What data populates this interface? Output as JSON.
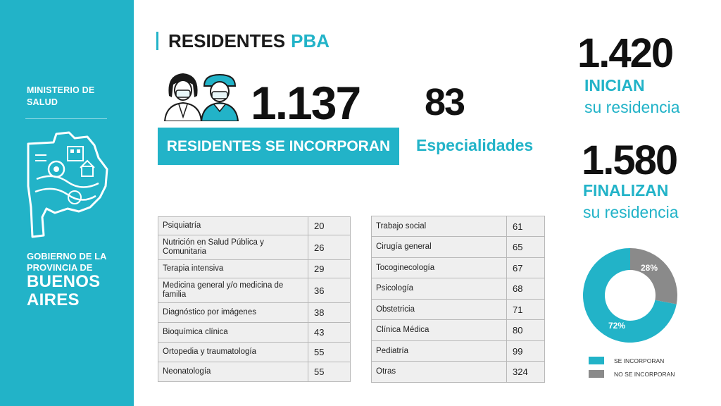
{
  "sidebar": {
    "ministry_line1": "MINISTERIO DE",
    "ministry_line2": "SALUD",
    "gov_line1": "GOBIERNO DE LA",
    "gov_line2": "PROVINCIA DE",
    "gov_line3": "BUENOS",
    "gov_line4": "AIRES"
  },
  "header": {
    "title_main": "RESIDENTES",
    "title_accent": "PBA"
  },
  "residents": {
    "count": "1.137",
    "label": "RESIDENTES SE INCORPORAN"
  },
  "specialties": {
    "count": "83",
    "label": "Especialidades"
  },
  "start": {
    "count": "1.420",
    "label": "INICIAN",
    "sub": "su residencia"
  },
  "finish": {
    "count": "1.580",
    "label": "FINALIZAN",
    "sub": "su residencia"
  },
  "table_left": [
    {
      "name": "Psiquiatría",
      "value": "20"
    },
    {
      "name": "Nutrición en Salud Pública y Comunitaria",
      "value": "26"
    },
    {
      "name": "Terapia intensiva",
      "value": "29"
    },
    {
      "name": "Medicina general y/o medicina de familia",
      "value": "36"
    },
    {
      "name": "Diagnóstico por imágenes",
      "value": "38"
    },
    {
      "name": "Bioquímica clínica",
      "value": "43"
    },
    {
      "name": "Ortopedia y traumatología",
      "value": "55"
    },
    {
      "name": "Neonatología",
      "value": "55"
    }
  ],
  "table_right": [
    {
      "name": "Trabajo social",
      "value": "61"
    },
    {
      "name": "Cirugía general",
      "value": "65"
    },
    {
      "name": "Tocoginecología",
      "value": "67"
    },
    {
      "name": "Psicología",
      "value": "68"
    },
    {
      "name": "Obstetricia",
      "value": "71"
    },
    {
      "name": "Clínica Médica",
      "value": "80"
    },
    {
      "name": "Pediatría",
      "value": "99"
    },
    {
      "name": "Otras",
      "value": "324"
    }
  ],
  "donut": {
    "slices": [
      {
        "label": "SE INCORPORAN",
        "percent": 72,
        "display": "72%",
        "color": "#22b3c8"
      },
      {
        "label": "NO SE INCORPORAN",
        "percent": 28,
        "display": "28%",
        "color": "#8a8a8a"
      }
    ]
  },
  "colors": {
    "accent": "#22b3c8",
    "gray": "#8a8a8a"
  },
  "icons": {
    "people": "medical-residents-icon",
    "logo": "province-map-icon"
  }
}
